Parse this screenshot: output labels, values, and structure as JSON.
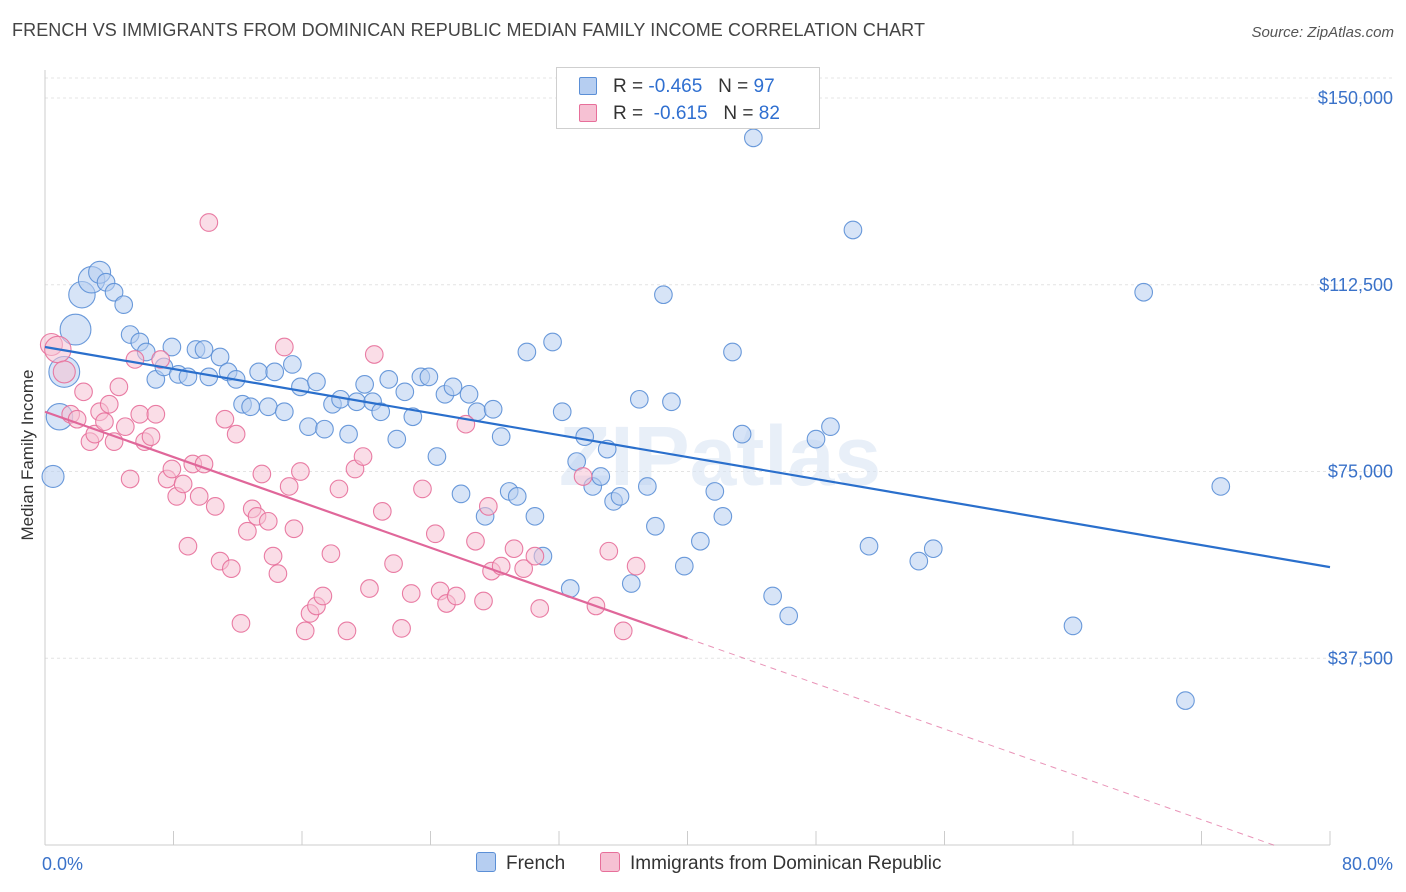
{
  "title": "FRENCH VS IMMIGRANTS FROM DOMINICAN REPUBLIC MEDIAN FAMILY INCOME CORRELATION CHART",
  "source": "Source: ZipAtlas.com",
  "watermark": "ZIPatlas",
  "colors": {
    "blue": "#5b8fd6",
    "blue_fill": "#b6cef1",
    "pink": "#e76f9a",
    "pink_fill": "#f6c1d3",
    "blue_line": "#2a6fcc",
    "pink_line": "#e0679a",
    "tick_blue": "#3a72c9"
  },
  "legend": {
    "r_label": "R =",
    "n_label": "N =",
    "series": [
      {
        "r": "-0.465",
        "n": "97"
      },
      {
        "r": "-0.615",
        "n": "82"
      }
    ]
  },
  "chart_data": {
    "type": "scatter",
    "title": "FRENCH VS IMMIGRANTS FROM DOMINICAN REPUBLIC MEDIAN FAMILY INCOME CORRELATION CHART",
    "xlabel": "",
    "ylabel": "Median Family Income",
    "xlim": [
      0,
      80
    ],
    "ylim": [
      0,
      157500
    ],
    "x_tick_labels": [
      "0.0%",
      "80.0%"
    ],
    "y_ticks": [
      37500,
      75000,
      112500,
      150000
    ],
    "y_tick_labels": [
      "$37,500",
      "$75,000",
      "$112,500",
      "$150,000"
    ],
    "grid": true,
    "legend_position": "top-center",
    "series": [
      {
        "name": "French",
        "r": -0.465,
        "n": 97,
        "trend": {
          "x": [
            0,
            80
          ],
          "y": [
            100000,
            55800
          ]
        },
        "points": [
          [
            0.5,
            74000,
            5
          ],
          [
            0.9,
            86000,
            6
          ],
          [
            1.2,
            95000,
            7
          ],
          [
            1.9,
            103500,
            7
          ],
          [
            2.3,
            110500,
            6
          ],
          [
            2.9,
            113500,
            6
          ],
          [
            3.4,
            115000,
            5
          ],
          [
            3.8,
            113000,
            4
          ],
          [
            4.3,
            111000,
            4
          ],
          [
            4.9,
            108500,
            4
          ],
          [
            5.3,
            102500,
            4
          ],
          [
            5.9,
            101000,
            4
          ],
          [
            6.3,
            99000,
            4
          ],
          [
            6.9,
            93500,
            4
          ],
          [
            7.4,
            96000,
            4
          ],
          [
            7.9,
            100000,
            4
          ],
          [
            8.3,
            94500,
            4
          ],
          [
            8.9,
            94000,
            4
          ],
          [
            9.4,
            99500,
            4
          ],
          [
            9.9,
            99500,
            4
          ],
          [
            10.2,
            94000,
            4
          ],
          [
            10.9,
            98000,
            4
          ],
          [
            11.4,
            95000,
            4
          ],
          [
            11.9,
            93500,
            4
          ],
          [
            12.3,
            88500,
            4
          ],
          [
            12.8,
            88000,
            4
          ],
          [
            13.3,
            95000,
            4
          ],
          [
            13.9,
            88000,
            4
          ],
          [
            14.3,
            95000,
            4
          ],
          [
            14.9,
            87000,
            4
          ],
          [
            15.4,
            96500,
            4
          ],
          [
            15.9,
            92000,
            4
          ],
          [
            16.4,
            84000,
            4
          ],
          [
            16.9,
            93000,
            4
          ],
          [
            17.4,
            83500,
            4
          ],
          [
            17.9,
            88500,
            4
          ],
          [
            18.4,
            89500,
            4
          ],
          [
            18.9,
            82500,
            4
          ],
          [
            19.4,
            89000,
            4
          ],
          [
            19.9,
            92500,
            4
          ],
          [
            20.4,
            89000,
            4
          ],
          [
            20.9,
            87000,
            4
          ],
          [
            21.4,
            93500,
            4
          ],
          [
            21.9,
            81500,
            4
          ],
          [
            22.4,
            91000,
            4
          ],
          [
            22.9,
            86000,
            4
          ],
          [
            23.4,
            94000,
            4
          ],
          [
            23.9,
            94000,
            4
          ],
          [
            24.4,
            78000,
            4
          ],
          [
            24.9,
            90500,
            4
          ],
          [
            25.4,
            92000,
            4
          ],
          [
            25.9,
            70500,
            4
          ],
          [
            26.4,
            90500,
            4
          ],
          [
            26.9,
            87000,
            4
          ],
          [
            27.4,
            66000,
            4
          ],
          [
            27.9,
            87500,
            4
          ],
          [
            28.4,
            82000,
            4
          ],
          [
            28.9,
            71000,
            4
          ],
          [
            29.4,
            70000,
            4
          ],
          [
            30.0,
            99000,
            4
          ],
          [
            30.5,
            66000,
            4
          ],
          [
            31.0,
            58000,
            4
          ],
          [
            31.6,
            101000,
            4
          ],
          [
            32.2,
            87000,
            4
          ],
          [
            32.7,
            51500,
            4
          ],
          [
            33.1,
            77000,
            4
          ],
          [
            33.6,
            82000,
            4
          ],
          [
            34.1,
            72000,
            4
          ],
          [
            34.6,
            74000,
            4
          ],
          [
            35.0,
            79500,
            4
          ],
          [
            35.4,
            69000,
            4
          ],
          [
            35.8,
            70000,
            4
          ],
          [
            36.5,
            52500,
            4
          ],
          [
            37.0,
            89500,
            4
          ],
          [
            37.5,
            72000,
            4
          ],
          [
            38.0,
            64000,
            4
          ],
          [
            38.5,
            110500,
            4
          ],
          [
            39.0,
            89000,
            4
          ],
          [
            39.8,
            56000,
            4
          ],
          [
            40.8,
            61000,
            4
          ],
          [
            41.7,
            71000,
            4
          ],
          [
            42.2,
            66000,
            4
          ],
          [
            42.8,
            99000,
            4
          ],
          [
            43.4,
            82500,
            4
          ],
          [
            44.1,
            142000,
            4
          ],
          [
            45.3,
            50000,
            4
          ],
          [
            46.3,
            46000,
            4
          ],
          [
            48.0,
            81500,
            4
          ],
          [
            48.9,
            84000,
            4
          ],
          [
            50.3,
            123500,
            4
          ],
          [
            51.3,
            60000,
            4
          ],
          [
            54.4,
            57000,
            4
          ],
          [
            55.3,
            59500,
            4
          ],
          [
            64.0,
            44000,
            4
          ],
          [
            68.4,
            111000,
            4
          ],
          [
            71.0,
            29000,
            4
          ],
          [
            73.2,
            72000,
            4
          ]
        ]
      },
      {
        "name": "Immigrants from Dominican Republic",
        "r": -0.615,
        "n": 82,
        "trend": {
          "x": [
            0,
            40
          ],
          "y": [
            87000,
            41500
          ]
        },
        "trend_extension": {
          "x": [
            40,
            80
          ],
          "y": [
            41500,
            -4000
          ]
        },
        "points": [
          [
            0.4,
            100500,
            5
          ],
          [
            0.8,
            99500,
            6
          ],
          [
            1.2,
            95000,
            5
          ],
          [
            1.6,
            86500,
            4
          ],
          [
            2.0,
            85500,
            4
          ],
          [
            2.4,
            91000,
            4
          ],
          [
            2.8,
            81000,
            4
          ],
          [
            3.1,
            82500,
            4
          ],
          [
            3.4,
            87000,
            4
          ],
          [
            3.7,
            85000,
            4
          ],
          [
            4.0,
            88500,
            4
          ],
          [
            4.3,
            81000,
            4
          ],
          [
            4.6,
            92000,
            4
          ],
          [
            5.0,
            84000,
            4
          ],
          [
            5.3,
            73500,
            4
          ],
          [
            5.6,
            97500,
            4
          ],
          [
            5.9,
            86500,
            4
          ],
          [
            6.2,
            81000,
            4
          ],
          [
            6.6,
            82000,
            4
          ],
          [
            6.9,
            86500,
            4
          ],
          [
            7.2,
            97500,
            4
          ],
          [
            7.6,
            73500,
            4
          ],
          [
            7.9,
            75500,
            4
          ],
          [
            8.2,
            70000,
            4
          ],
          [
            8.6,
            72500,
            4
          ],
          [
            8.9,
            60000,
            4
          ],
          [
            9.2,
            76500,
            4
          ],
          [
            9.6,
            70000,
            4
          ],
          [
            9.9,
            76500,
            4
          ],
          [
            10.2,
            125000,
            4
          ],
          [
            10.6,
            68000,
            4
          ],
          [
            10.9,
            57000,
            4
          ],
          [
            11.2,
            85500,
            4
          ],
          [
            11.6,
            55500,
            4
          ],
          [
            11.9,
            82500,
            4
          ],
          [
            12.2,
            44500,
            4
          ],
          [
            12.6,
            63000,
            4
          ],
          [
            12.9,
            67500,
            4
          ],
          [
            13.2,
            66000,
            4
          ],
          [
            13.5,
            74500,
            4
          ],
          [
            13.9,
            65000,
            4
          ],
          [
            14.2,
            58000,
            4
          ],
          [
            14.5,
            54500,
            4
          ],
          [
            14.9,
            100000,
            4
          ],
          [
            15.2,
            72000,
            4
          ],
          [
            15.5,
            63500,
            4
          ],
          [
            15.9,
            75000,
            4
          ],
          [
            16.2,
            43000,
            4
          ],
          [
            16.5,
            46500,
            4
          ],
          [
            16.9,
            48000,
            4
          ],
          [
            17.3,
            50000,
            4
          ],
          [
            17.8,
            58500,
            4
          ],
          [
            18.3,
            71500,
            4
          ],
          [
            18.8,
            43000,
            4
          ],
          [
            19.3,
            75500,
            4
          ],
          [
            19.8,
            78000,
            4
          ],
          [
            20.5,
            98500,
            4
          ],
          [
            21.0,
            67000,
            4
          ],
          [
            21.7,
            56500,
            4
          ],
          [
            22.2,
            43500,
            4
          ],
          [
            22.8,
            50500,
            4
          ],
          [
            23.5,
            71500,
            4
          ],
          [
            24.6,
            51000,
            4
          ],
          [
            25.0,
            48500,
            4
          ],
          [
            25.6,
            50000,
            4
          ],
          [
            26.2,
            84500,
            4
          ],
          [
            26.8,
            61000,
            4
          ],
          [
            27.3,
            49000,
            4
          ],
          [
            27.8,
            55000,
            4
          ],
          [
            28.4,
            56000,
            4
          ],
          [
            29.2,
            59500,
            4
          ],
          [
            29.8,
            55500,
            4
          ],
          [
            30.5,
            58000,
            4
          ],
          [
            33.5,
            74000,
            4
          ],
          [
            34.3,
            48000,
            4
          ],
          [
            35.1,
            59000,
            4
          ],
          [
            36.0,
            43000,
            4
          ],
          [
            36.8,
            56000,
            4
          ],
          [
            30.8,
            47500,
            4
          ],
          [
            27.6,
            68000,
            4
          ],
          [
            24.3,
            62500,
            4
          ],
          [
            20.2,
            51500,
            4
          ]
        ]
      }
    ]
  }
}
